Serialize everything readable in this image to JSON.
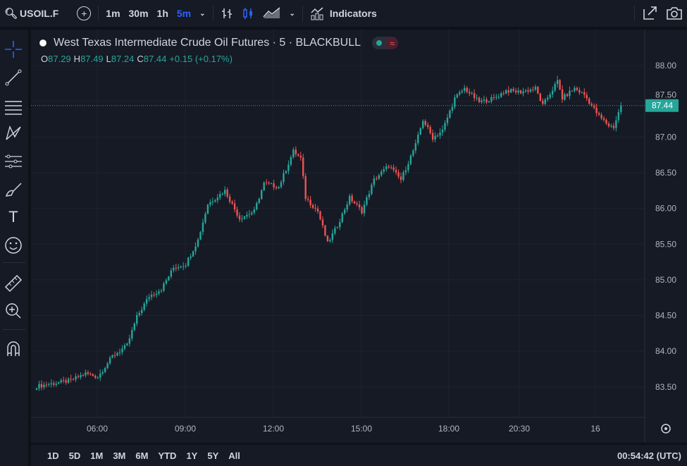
{
  "toolbar": {
    "symbol": "USOIL.F",
    "intervals": [
      "1m",
      "30m",
      "1h",
      "5m"
    ],
    "active_interval": "5m",
    "indicators": "Indicators"
  },
  "legend": {
    "title": "West Texas Intermediate Crude Oil Futures · 5 · BLACKBULL",
    "o_label": "O",
    "o": "87.29",
    "h_label": "H",
    "h": "87.49",
    "l_label": "L",
    "l": "87.24",
    "c_label": "C",
    "c": "87.44",
    "change": "+0.15 (+0.17%)"
  },
  "ranges": [
    "1D",
    "5D",
    "1M",
    "3M",
    "6M",
    "YTD",
    "1Y",
    "5Y",
    "All"
  ],
  "clock": "00:54:42 (UTC)",
  "colors": {
    "up": "#26a69a",
    "down": "#ef5350",
    "accent": "#2962ff",
    "bg": "#161a25"
  },
  "chart_data": {
    "type": "candlestick",
    "title": "West Texas Intermediate Crude Oil Futures · 5 · BLACKBULL",
    "ylim": [
      83.35,
      88.15
    ],
    "y_ticks": [
      "88.00",
      "87.50",
      "87.00",
      "86.50",
      "86.00",
      "85.50",
      "85.00",
      "84.50",
      "84.00",
      "83.50"
    ],
    "x_ticks": [
      "06:00",
      "09:00",
      "12:00",
      "15:00",
      "18:00",
      "20:30",
      "16"
    ],
    "last_price": "87.44",
    "candle_count": 240,
    "close_path": [
      [
        0,
        83.51
      ],
      [
        14,
        83.59
      ],
      [
        20,
        83.69
      ],
      [
        25,
        83.64
      ],
      [
        31,
        83.93
      ],
      [
        37,
        84.08
      ],
      [
        41,
        84.48
      ],
      [
        46,
        84.77
      ],
      [
        51,
        84.87
      ],
      [
        56,
        85.17
      ],
      [
        61,
        85.22
      ],
      [
        66,
        85.56
      ],
      [
        70,
        86.06
      ],
      [
        77,
        86.25
      ],
      [
        83,
        85.86
      ],
      [
        89,
        85.96
      ],
      [
        93,
        86.35
      ],
      [
        99,
        86.3
      ],
      [
        105,
        86.8
      ],
      [
        108,
        86.7
      ],
      [
        110,
        86.15
      ],
      [
        115,
        85.96
      ],
      [
        119,
        85.51
      ],
      [
        123,
        85.76
      ],
      [
        128,
        86.15
      ],
      [
        133,
        85.96
      ],
      [
        138,
        86.4
      ],
      [
        144,
        86.6
      ],
      [
        149,
        86.4
      ],
      [
        155,
        86.89
      ],
      [
        158,
        87.24
      ],
      [
        162,
        86.99
      ],
      [
        166,
        87.09
      ],
      [
        171,
        87.54
      ],
      [
        175,
        87.68
      ],
      [
        181,
        87.49
      ],
      [
        187,
        87.54
      ],
      [
        192,
        87.65
      ],
      [
        198,
        87.63
      ],
      [
        204,
        87.68
      ],
      [
        207,
        87.44
      ],
      [
        213,
        87.78
      ],
      [
        215,
        87.54
      ],
      [
        220,
        87.68
      ],
      [
        224,
        87.59
      ],
      [
        230,
        87.29
      ],
      [
        234,
        87.16
      ],
      [
        236,
        87.14
      ],
      [
        239,
        87.44
      ]
    ]
  }
}
